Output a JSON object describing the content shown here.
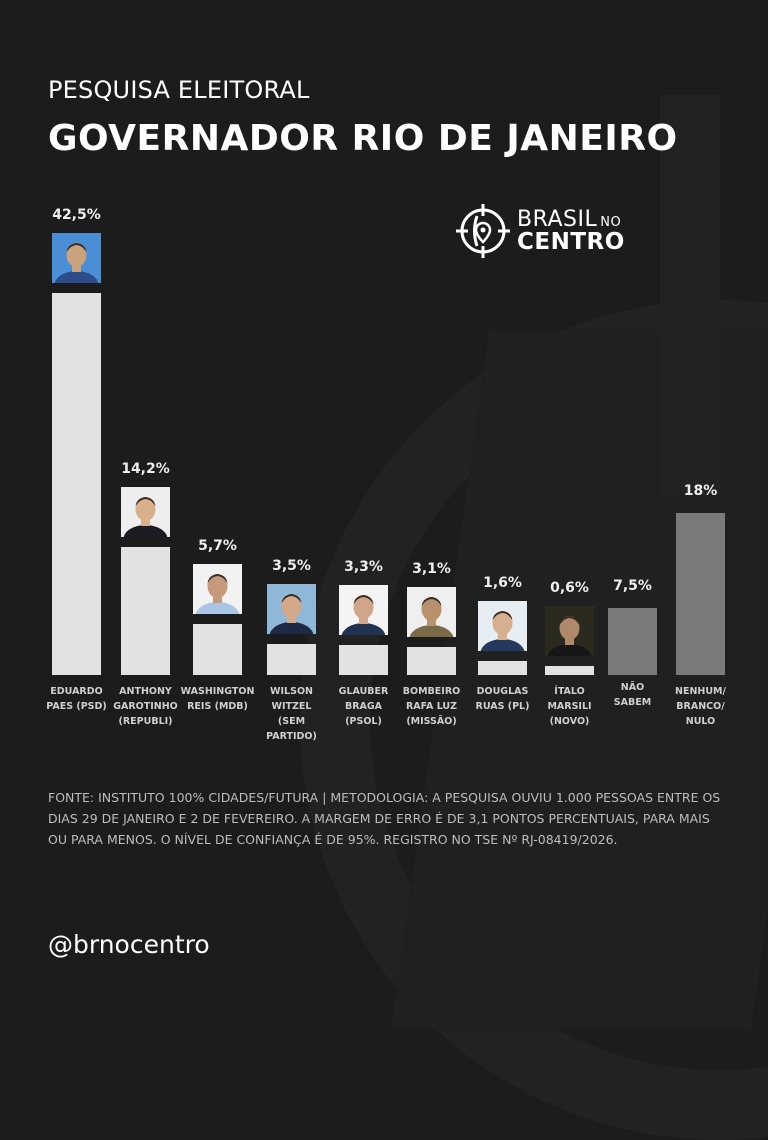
{
  "header": {
    "subtitle": "PESQUISA ELEITORAL",
    "title": "GOVERNADOR RIO DE JANEIRO"
  },
  "logo": {
    "line1": "BRASIL",
    "line1_small": "NO",
    "line2": "CENTRO",
    "icon": "crosshair-pin-icon"
  },
  "colors": {
    "background": "#1c1c1c",
    "candidate_bar": "#e2e2e2",
    "other_bar": "#7a7a7a",
    "text": "#ffffff"
  },
  "chart_data": {
    "type": "bar",
    "title": "GOVERNADOR RIO DE JANEIRO",
    "subtitle": "PESQUISA ELEITORAL",
    "xlabel": "",
    "ylabel": "",
    "grid": false,
    "legend": null,
    "unit": "%",
    "categories": [
      "EDUARDO PAES (PSD)",
      "ANTHONY GAROTINHO (REPUBLI)",
      "WASHINGTON REIS (MDB)",
      "WILSON WITZEL (SEM PARTIDO)",
      "GLAUBER BRAGA (PSOL)",
      "BOMBEIRO RAFA LUZ (MISSÃO)",
      "DOUGLAS RUAS (PL)",
      "ÍTALO MARSILI (NOVO)",
      "NÃO SABEM",
      "NENHUM/ BRANCO/ NULO"
    ],
    "values": [
      42.5,
      14.2,
      5.7,
      3.5,
      3.3,
      3.1,
      1.6,
      0.6,
      7.5,
      18
    ],
    "labels": [
      "42,5%",
      "14,2%",
      "5,7%",
      "3,5%",
      "3,3%",
      "3,1%",
      "1,6%",
      "0,6%",
      "7,5%",
      "18%"
    ],
    "ylim": [
      0,
      45
    ]
  },
  "bars": [
    {
      "label": "EDUARDO\nPAES (PSD)",
      "value_label": "42,5%",
      "photo": "candidate-photo-eduardo-paes"
    },
    {
      "label": "ANTHONY\nGAROTINHO\n(REPUBLI)",
      "value_label": "14,2%",
      "photo": "candidate-photo-anthony-garotinho"
    },
    {
      "label": "WASHINGTON\nREIS (MDB)",
      "value_label": "5,7%",
      "photo": "candidate-photo-washington-reis"
    },
    {
      "label": "WILSON\nWITZEL\n(SEM\nPARTIDO)",
      "value_label": "3,5%",
      "photo": "candidate-photo-wilson-witzel"
    },
    {
      "label": "GLAUBER\nBRAGA\n(PSOL)",
      "value_label": "3,3%",
      "photo": "candidate-photo-glauber-braga"
    },
    {
      "label": "BOMBEIRO\nRAFA LUZ\n(MISSÃO)",
      "value_label": "3,1%",
      "photo": "candidate-photo-rafa-luz"
    },
    {
      "label": "DOUGLAS\nRUAS (PL)",
      "value_label": "1,6%",
      "photo": "candidate-photo-douglas-ruas"
    },
    {
      "label": "ÍTALO\nMARSILI\n(NOVO)",
      "value_label": "0,6%",
      "photo": "candidate-photo-italo-marsili"
    },
    {
      "label": "NÃO\nSABEM",
      "value_label": "7,5%",
      "photo": null
    },
    {
      "label": "NENHUM/\nBRANCO/\nNULO",
      "value_label": "18%",
      "photo": null
    }
  ],
  "footnote": "FONTE: INSTITUTO 100% CIDADES/FUTURA | METODOLOGIA: A PESQUISA OUVIU 1.000 PESSOAS ENTRE OS DIAS 29 DE JANEIRO E 2 DE FEVEREIRO. A MARGEM DE ERRO É DE 3,1 PONTOS PERCENTUAIS, PARA MAIS OU PARA MENOS. O NÍVEL DE CONFIANÇA É DE 95%. REGISTRO NO TSE Nº RJ-08419/2026.",
  "social_handle": "@brnocentro"
}
